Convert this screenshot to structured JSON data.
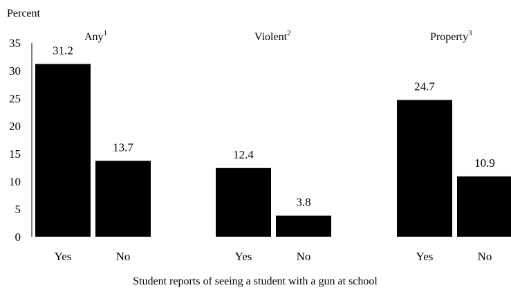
{
  "chart_data": {
    "type": "bar",
    "ylabel": "Percent",
    "xlabel": "Student reports of seeing a student with a gun at school",
    "ylim": [
      0,
      35
    ],
    "yticks": [
      "0",
      "5",
      "10",
      "15",
      "20",
      "25",
      "30",
      "35"
    ],
    "grid": false,
    "legend": "none",
    "bar_color": "#000000",
    "groups": [
      {
        "label": "Any",
        "sup": "1",
        "categories": [
          "Yes",
          "No"
        ],
        "values": [
          31.2,
          13.7
        ],
        "value_labels": [
          "31.2",
          "13.7"
        ]
      },
      {
        "label": "Violent",
        "sup": "2",
        "categories": [
          "Yes",
          "No"
        ],
        "values": [
          12.4,
          3.8
        ],
        "value_labels": [
          "12.4",
          "3.8"
        ]
      },
      {
        "label": "Property",
        "sup": "3",
        "categories": [
          "Yes",
          "No"
        ],
        "values": [
          24.7,
          10.9
        ],
        "value_labels": [
          "24.7",
          "10.9"
        ]
      }
    ]
  }
}
